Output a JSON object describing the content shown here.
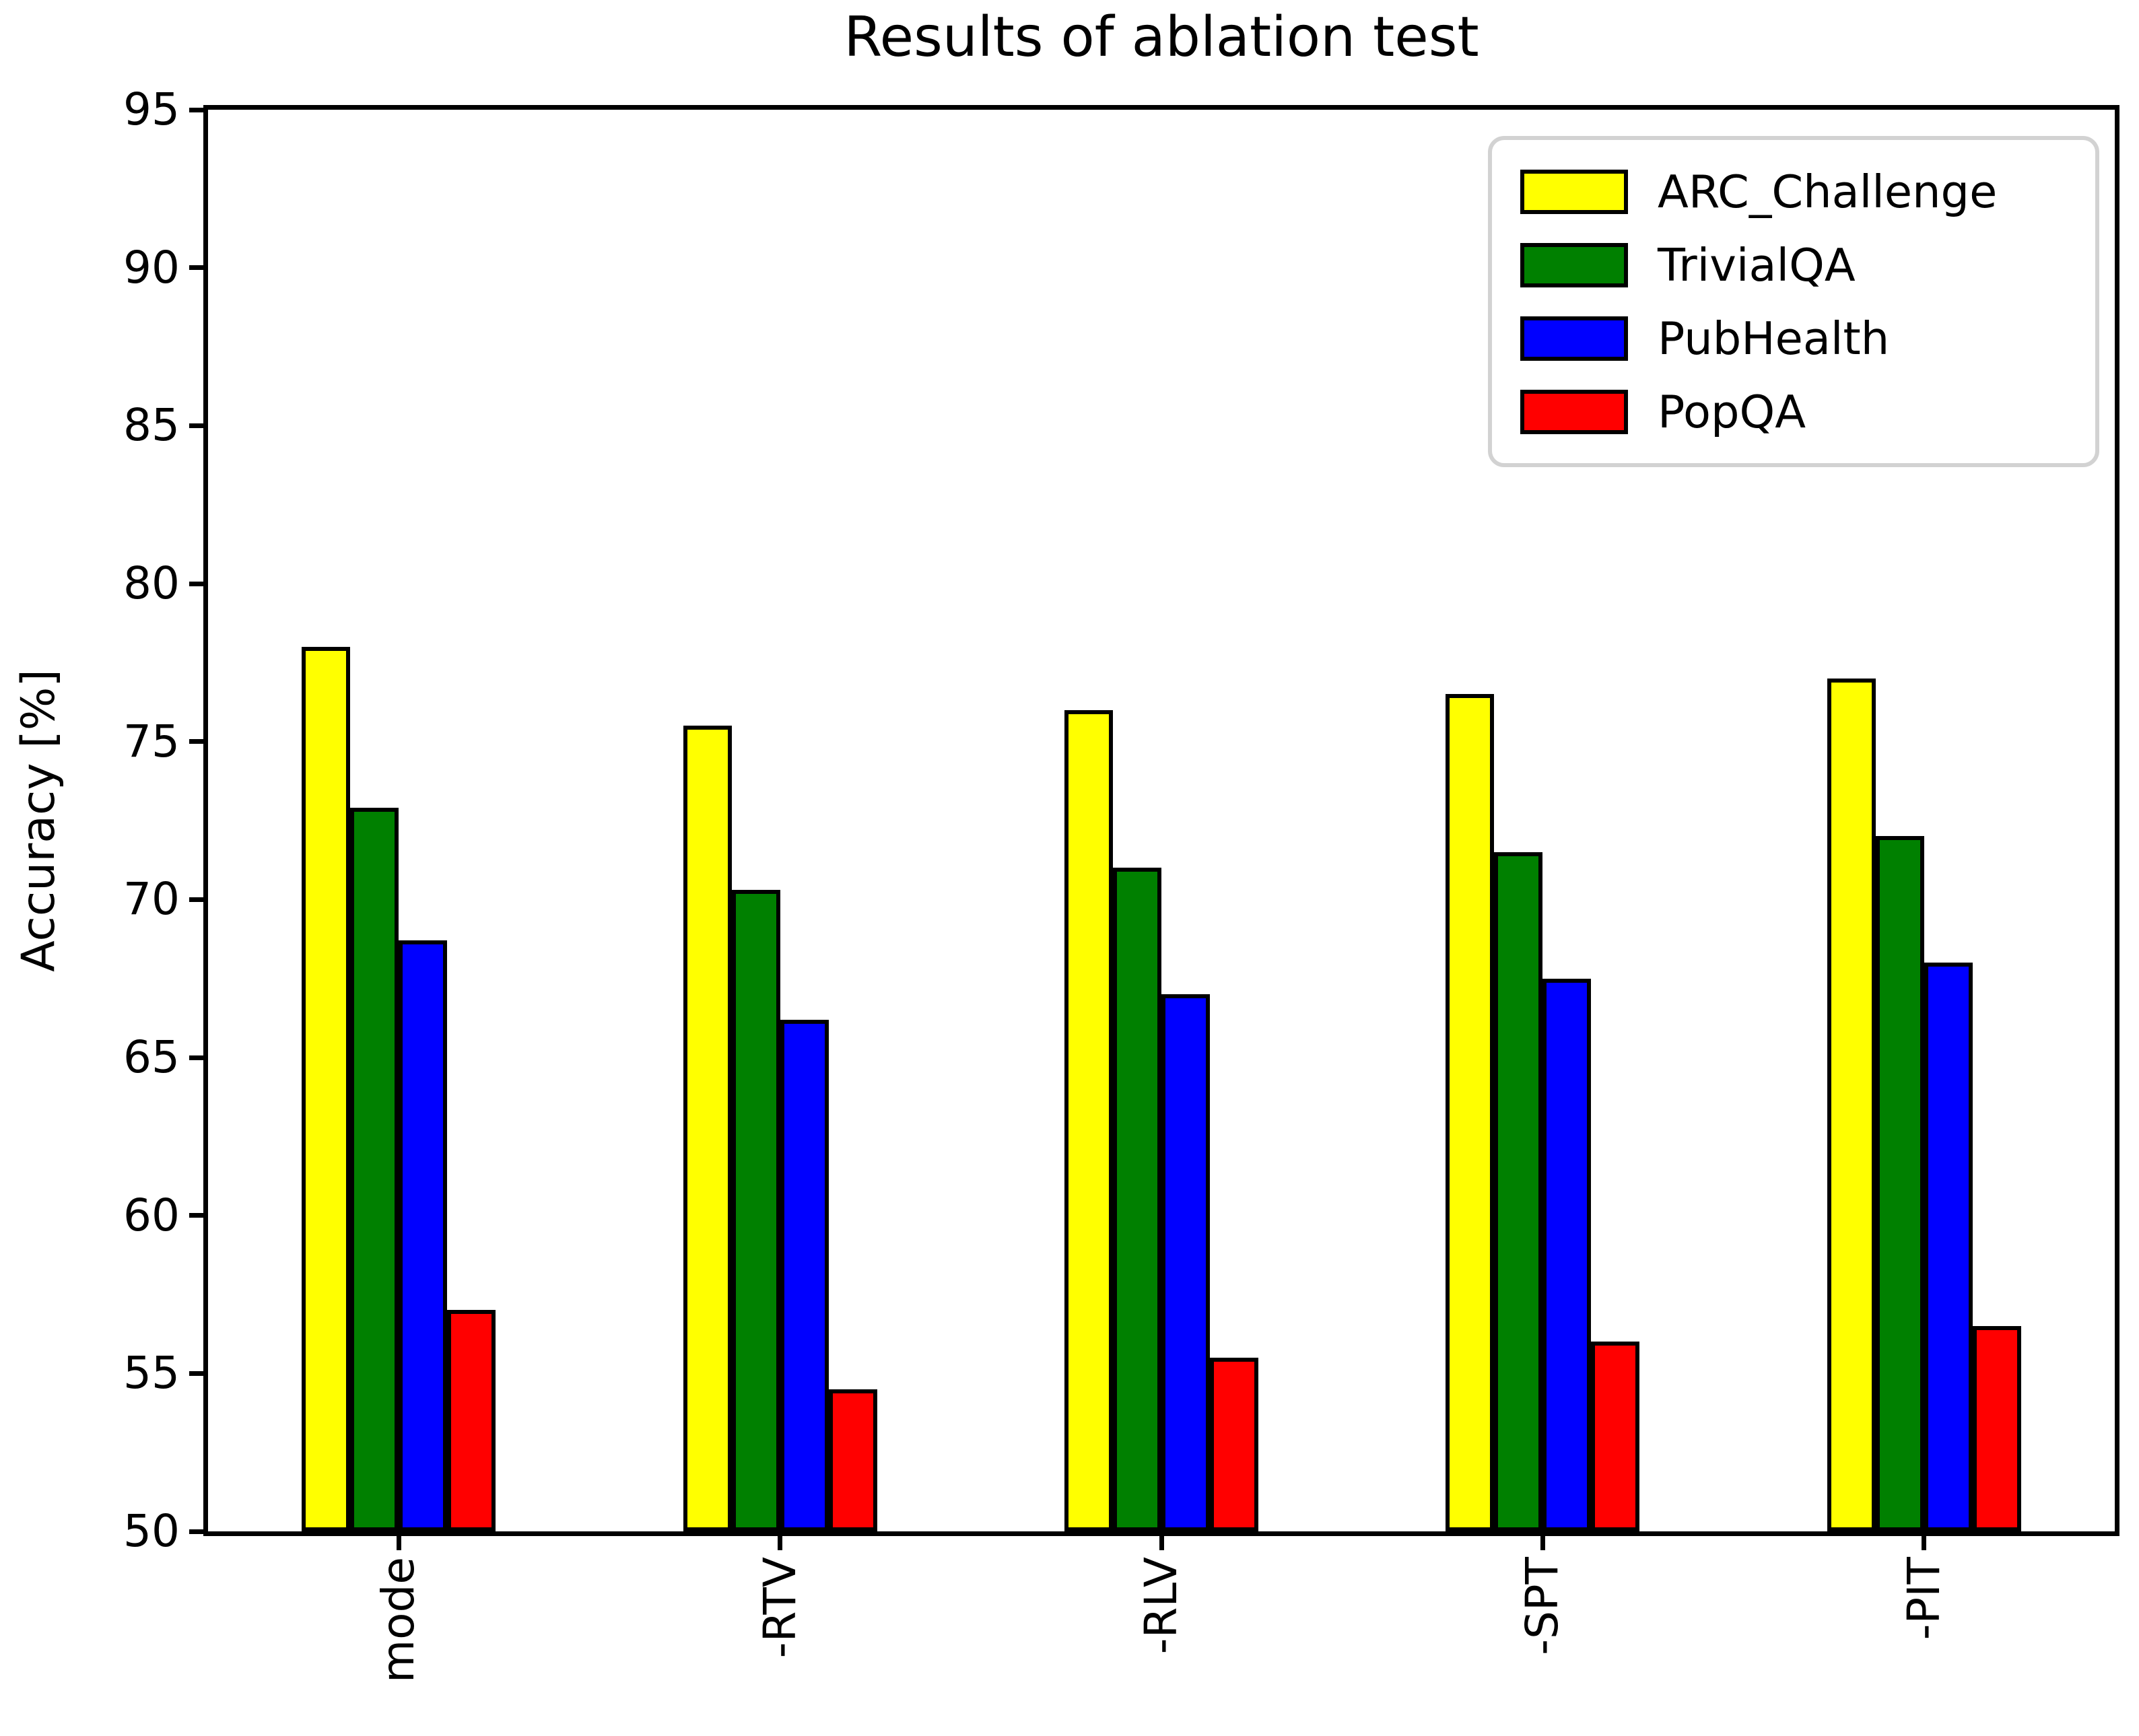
{
  "chart_data": {
    "type": "bar",
    "title": "Results of ablation test",
    "xlabel": "",
    "ylabel": "Accuracy [%]",
    "ylim": [
      50,
      95
    ],
    "yticks": [
      50,
      55,
      60,
      65,
      70,
      75,
      80,
      85,
      90,
      95
    ],
    "categories": [
      "mode",
      "-RTV",
      "-RLV",
      "-SPT",
      "-PIT"
    ],
    "series": [
      {
        "name": "ARC_Challenge",
        "color": "#ffff00",
        "values": [
          78.0,
          75.5,
          76.0,
          76.5,
          77.0
        ]
      },
      {
        "name": "TrivialQA",
        "color": "#008000",
        "values": [
          72.9,
          70.3,
          71.0,
          71.5,
          72.0
        ]
      },
      {
        "name": "PubHealth",
        "color": "#0000ff",
        "values": [
          68.7,
          66.2,
          67.0,
          67.5,
          68.0
        ]
      },
      {
        "name": "PopQA",
        "color": "#ff0000",
        "values": [
          57.0,
          54.5,
          55.5,
          56.0,
          56.5
        ]
      }
    ],
    "bar_edge_color": "#000000",
    "legend": {
      "position": "upper right",
      "border_color": "#d2d2d2"
    },
    "grid": false
  }
}
